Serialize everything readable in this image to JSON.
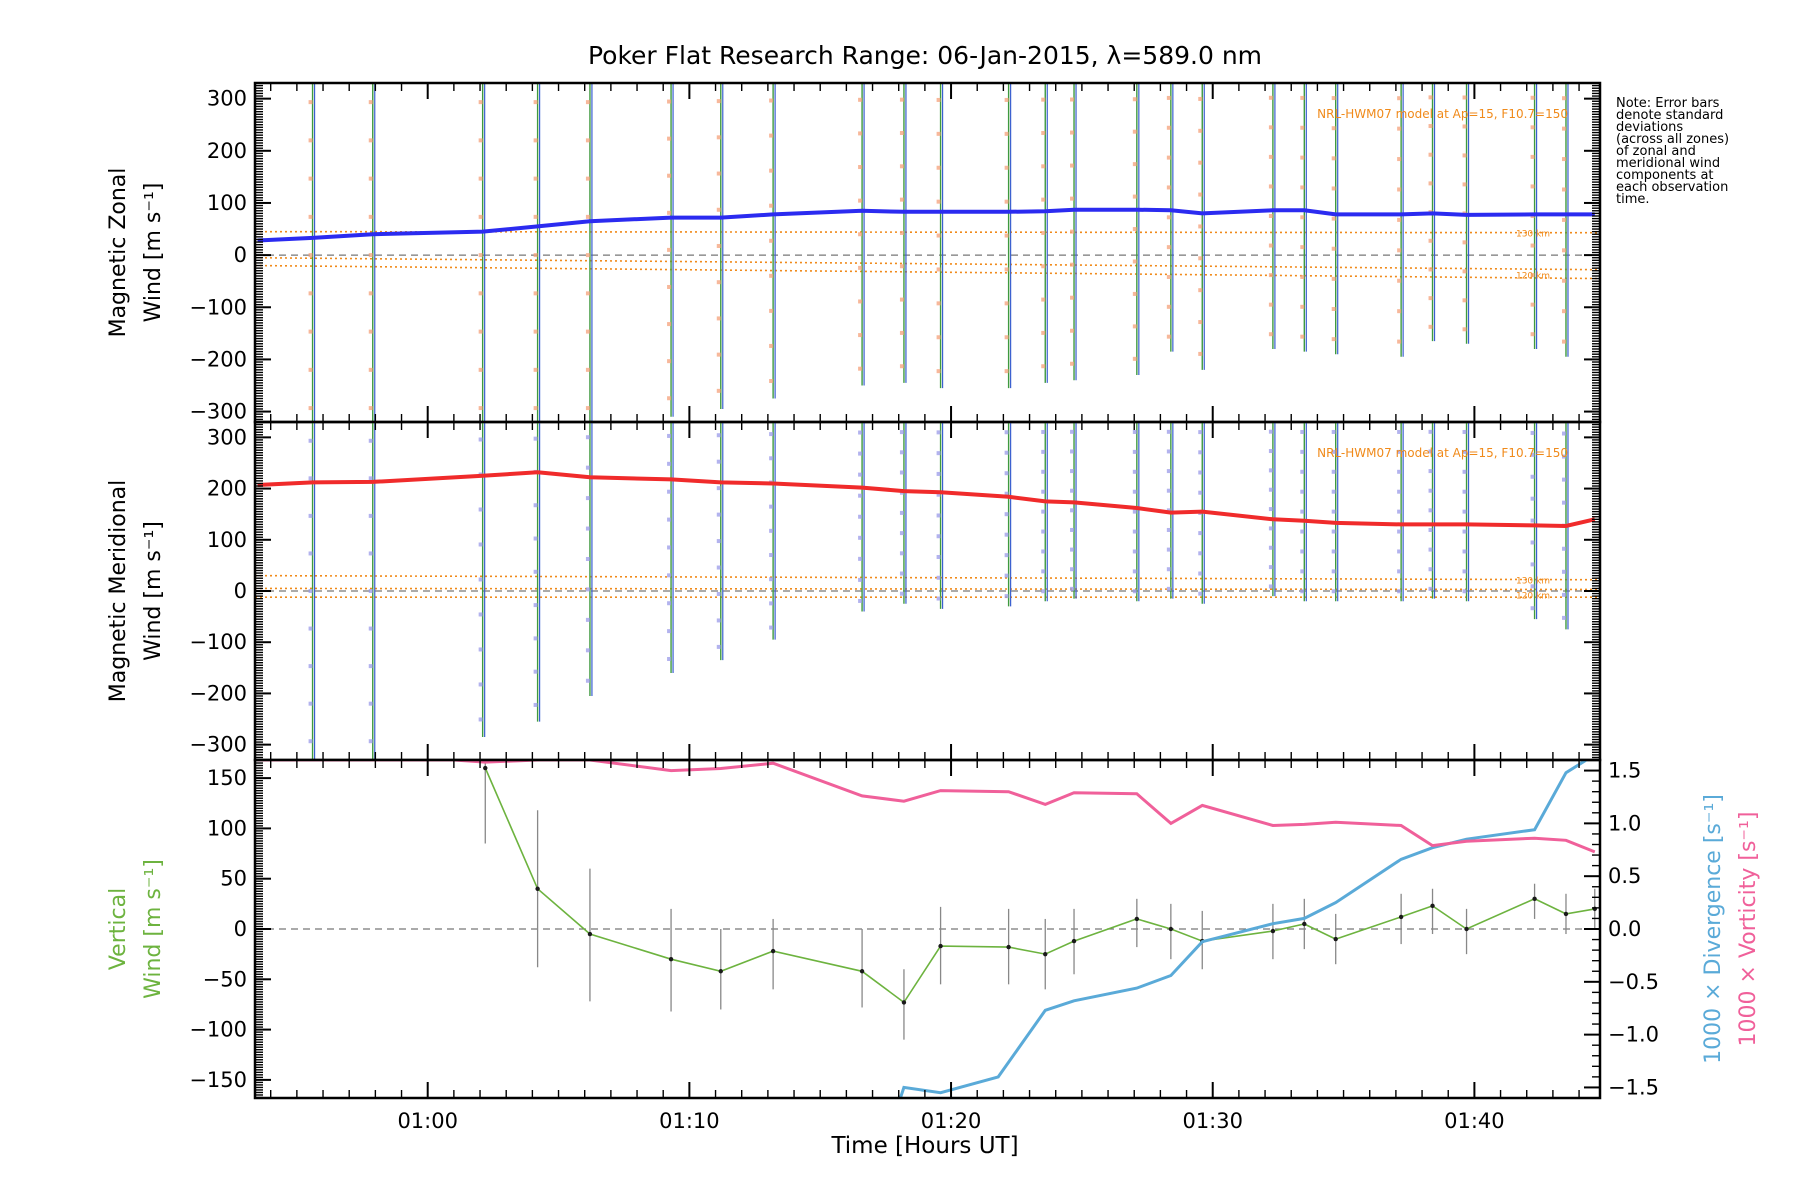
{
  "title": "Poker Flat Research Range: 06-Jan-2015, λ=589.0 nm",
  "note_lines": [
    "Note: Error bars",
    "denote standard",
    "deviations",
    "(across all zones)",
    "of zonal and",
    "meridional wind",
    "components at",
    "each observation",
    "time."
  ],
  "colors": {
    "zonal": "#2b2bf0",
    "meridional": "#f02b2b",
    "vertical": "#6db33f",
    "divergence": "#5aaad8",
    "vorticity": "#f0609a",
    "model": "#f08a1a",
    "scatter_zonal": "#f4a07a",
    "scatter_merid": "#9a9ae8",
    "errbar_green": "#3f9a3f",
    "errbar_blue": "#3a5fd0"
  },
  "chart_data": [
    {
      "type": "line",
      "id": "zonal",
      "ylabel_line1": "Magnetic Zonal",
      "ylabel_line2": "Wind [m s⁻¹]",
      "ylim": [
        -320,
        330
      ],
      "yticks": [
        -300,
        -200,
        -100,
        0,
        100,
        200,
        300
      ],
      "tick_labels": [
        "−300",
        "−200",
        "−100",
        "0",
        "100",
        "200",
        "300"
      ],
      "model_label": "NRL-HWM07 model at Ap=15, F10.7=150",
      "model_alt_labels": [
        "130 km",
        "120 km"
      ],
      "x_minutes": [
        53.5,
        55.6,
        57.9,
        62.1,
        64.2,
        66.2,
        69.3,
        71.2,
        73.2,
        76.6,
        78.2,
        79.6,
        82.2,
        83.6,
        84.7,
        87.1,
        88.4,
        89.6,
        92.3,
        93.5,
        94.7,
        97.2,
        98.4,
        99.7,
        102.3,
        103.5,
        104.6
      ],
      "values": [
        28,
        33,
        40,
        45,
        55,
        65,
        72,
        72,
        78,
        85,
        83,
        83,
        83,
        84,
        87,
        87,
        86,
        80,
        86,
        86,
        78,
        78,
        80,
        77,
        78,
        78,
        78
      ],
      "model_lines": [
        [
          45,
          43
        ],
        [
          -5,
          -28
        ],
        [
          -20,
          -45
        ]
      ],
      "bar_x": [
        55.6,
        57.9,
        62.1,
        64.2,
        66.2,
        69.3,
        71.2,
        73.2,
        76.6,
        78.2,
        79.6,
        82.2,
        83.6,
        84.7,
        87.1,
        88.4,
        89.6,
        92.3,
        93.5,
        94.7,
        97.2,
        98.4,
        99.7,
        102.3,
        103.5
      ],
      "bar_lo": [
        -330,
        -330,
        -330,
        -330,
        -330,
        -310,
        -295,
        -275,
        -250,
        -245,
        -255,
        -255,
        -245,
        -240,
        -230,
        -185,
        -220,
        -180,
        -185,
        -190,
        -195,
        -165,
        -170,
        -180,
        -195
      ],
      "bar_hi": [
        330,
        330,
        330,
        330,
        330,
        330,
        330,
        330,
        330,
        330,
        330,
        330,
        330,
        330,
        330,
        330,
        330,
        330,
        330,
        330,
        330,
        330,
        330,
        330,
        330
      ]
    },
    {
      "type": "line",
      "id": "meridional",
      "ylabel_line1": "Magnetic Meridional",
      "ylabel_line2": "Wind [m s⁻¹]",
      "ylim": [
        -330,
        330
      ],
      "yticks": [
        -300,
        -200,
        -100,
        0,
        100,
        200,
        300
      ],
      "tick_labels": [
        "−300",
        "−200",
        "−100",
        "0",
        "100",
        "200",
        "300"
      ],
      "model_label": "NRL-HWM07 model at Ap=15, F10.7=150",
      "model_alt_labels": [
        "130 km",
        "120 km"
      ],
      "x_minutes": [
        53.5,
        55.6,
        57.9,
        62.1,
        64.2,
        66.2,
        69.3,
        71.2,
        73.2,
        76.6,
        78.2,
        79.6,
        82.2,
        83.6,
        84.7,
        87.1,
        88.4,
        89.6,
        92.3,
        93.5,
        94.7,
        97.2,
        98.4,
        99.7,
        102.3,
        103.5,
        104.6
      ],
      "values": [
        207,
        212,
        213,
        225,
        232,
        222,
        218,
        212,
        210,
        202,
        195,
        193,
        184,
        175,
        173,
        162,
        153,
        155,
        140,
        137,
        133,
        130,
        130,
        130,
        128,
        127,
        140
      ],
      "model_lines": [
        [
          30,
          22
        ],
        [
          5,
          3
        ],
        [
          -12,
          -12
        ]
      ],
      "bar_x": [
        55.6,
        57.9,
        62.1,
        64.2,
        66.2,
        69.3,
        71.2,
        73.2,
        76.6,
        78.2,
        79.6,
        82.2,
        83.6,
        84.7,
        87.1,
        88.4,
        89.6,
        92.3,
        93.5,
        94.7,
        97.2,
        98.4,
        99.7,
        102.3,
        103.5
      ],
      "bar_lo": [
        -330,
        -330,
        -285,
        -255,
        -205,
        -160,
        -135,
        -95,
        -40,
        -25,
        -35,
        -30,
        -20,
        -15,
        -20,
        -15,
        -25,
        -10,
        -20,
        -20,
        -20,
        -15,
        -20,
        -55,
        -75
      ],
      "bar_hi": [
        330,
        330,
        330,
        330,
        330,
        330,
        330,
        330,
        330,
        330,
        330,
        330,
        330,
        330,
        330,
        330,
        330,
        330,
        330,
        330,
        330,
        330,
        330,
        330,
        330
      ]
    },
    {
      "type": "line",
      "id": "vertical",
      "ylabel_line1": "Vertical",
      "ylabel_line2": "Wind [m s⁻¹]",
      "ylim": [
        -168,
        168
      ],
      "yticks": [
        -150,
        -100,
        -50,
        0,
        50,
        100,
        150
      ],
      "tick_labels": [
        "−150",
        "−100",
        "−50",
        "0",
        "50",
        "100",
        "150"
      ],
      "xlabel": "Time [Hours UT]",
      "xlim_minutes": [
        53.4,
        104.8
      ],
      "xticks_minutes": [
        60,
        70,
        80,
        90,
        100
      ],
      "xtick_labels": [
        "01:00",
        "01:10",
        "01:20",
        "01:30",
        "01:40"
      ],
      "right_ylim": [
        -1.6,
        1.6
      ],
      "right_yticks": [
        -1.5,
        -1.0,
        -0.5,
        0.0,
        0.5,
        1.0,
        1.5
      ],
      "right_tick_labels": [
        "−1.5",
        "−1.0",
        "−0.5",
        "0.0",
        "0.5",
        "1.0",
        "1.5"
      ],
      "right_label_divergence": "1000 × Divergence [s⁻¹]",
      "right_label_vorticity": "1000 × Vorticity [s⁻¹]",
      "series": [
        {
          "name": "Vertical Wind",
          "x": [
            62.2,
            64.2,
            66.2,
            69.3,
            71.2,
            73.2,
            76.6,
            78.2,
            79.6,
            82.2,
            83.6,
            84.7,
            87.1,
            88.4,
            89.6,
            92.3,
            93.5,
            94.7,
            97.2,
            98.4,
            99.7,
            102.3,
            103.5,
            104.6
          ],
          "values": [
            160,
            40,
            -5,
            -30,
            -42,
            -22,
            -42,
            -73,
            -17,
            -18,
            -25,
            -12,
            10,
            0,
            -12,
            -2,
            5,
            -10,
            12,
            23,
            0,
            30,
            15,
            20
          ],
          "err_lo": [
            85,
            -38,
            -72,
            -82,
            -80,
            -60,
            -78,
            -110,
            -55,
            -55,
            -60,
            -45,
            -18,
            -30,
            -40,
            -30,
            -20,
            -35,
            -15,
            -5,
            -25,
            10,
            -5,
            0
          ],
          "err_hi": [
            175,
            118,
            60,
            20,
            0,
            10,
            0,
            -40,
            22,
            20,
            10,
            20,
            30,
            25,
            18,
            25,
            30,
            15,
            35,
            40,
            20,
            45,
            35,
            40
          ]
        },
        {
          "name": "1000 x Divergence",
          "x": [
            78.0,
            78.2,
            79.6,
            81.8,
            83.6,
            84.7,
            87.1,
            88.4,
            89.6,
            92.3,
            93.5,
            94.7,
            97.2,
            98.4,
            99.7,
            102.3,
            103.5,
            104.6
          ],
          "values": [
            -1.65,
            -1.5,
            -1.55,
            -1.4,
            -0.77,
            -0.68,
            -0.56,
            -0.44,
            -0.12,
            0.05,
            0.1,
            0.25,
            0.66,
            0.77,
            0.85,
            0.94,
            1.48,
            1.65
          ]
        },
        {
          "name": "1000 x Vorticity",
          "x": [
            53.5,
            55.6,
            61.0,
            62.2,
            64.2,
            66.2,
            69.3,
            71.2,
            73.2,
            76.6,
            78.2,
            79.6,
            82.2,
            83.6,
            84.7,
            87.1,
            88.4,
            89.6,
            92.3,
            93.5,
            94.7,
            97.2,
            98.4,
            99.7,
            102.3,
            103.5,
            104.6
          ],
          "values": [
            1.6,
            1.6,
            1.6,
            1.58,
            1.6,
            1.6,
            1.5,
            1.52,
            1.57,
            1.26,
            1.21,
            1.31,
            1.3,
            1.18,
            1.29,
            1.28,
            1.0,
            1.17,
            0.98,
            0.99,
            1.01,
            0.98,
            0.79,
            0.83,
            0.86,
            0.84,
            0.73
          ]
        }
      ]
    }
  ]
}
